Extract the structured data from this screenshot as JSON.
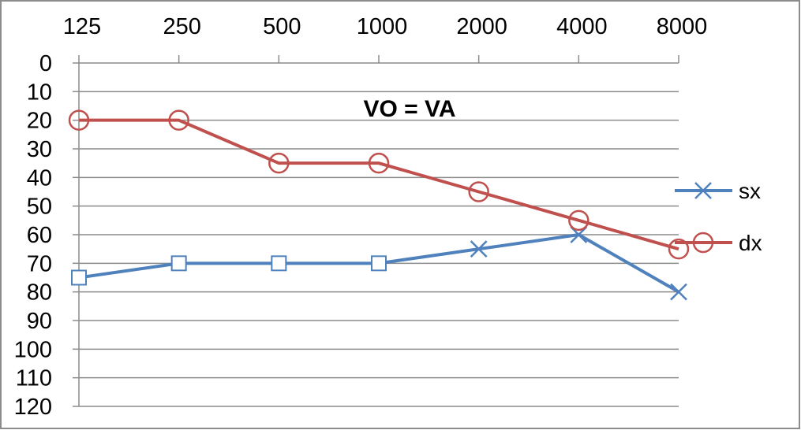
{
  "chart_data": {
    "type": "line",
    "title": "VO = VA",
    "categories": [
      "125",
      "250",
      "500",
      "1000",
      "2000",
      "4000",
      "8000"
    ],
    "y_ticks": [
      "0",
      "10",
      "20",
      "30",
      "40",
      "50",
      "60",
      "70",
      "80",
      "90",
      "100",
      "110",
      "120"
    ],
    "ylim": [
      0,
      120
    ],
    "y_inverted": true,
    "x_axis_position": "top",
    "grid": "horizontal",
    "legend_position": "right",
    "series": [
      {
        "name": "sx",
        "color": "#4f81bd",
        "legend_marker": "x",
        "point_markers": [
          "square",
          "square",
          "square",
          "square",
          "x",
          "x",
          "x"
        ],
        "values": [
          75,
          70,
          70,
          70,
          65,
          60,
          80
        ]
      },
      {
        "name": "dx",
        "color": "#c0504d",
        "legend_marker": "circle",
        "point_markers": [
          "circle",
          "circle",
          "circle",
          "circle",
          "circle",
          "circle",
          "circle"
        ],
        "values": [
          20,
          20,
          35,
          35,
          45,
          55,
          65
        ]
      }
    ]
  }
}
